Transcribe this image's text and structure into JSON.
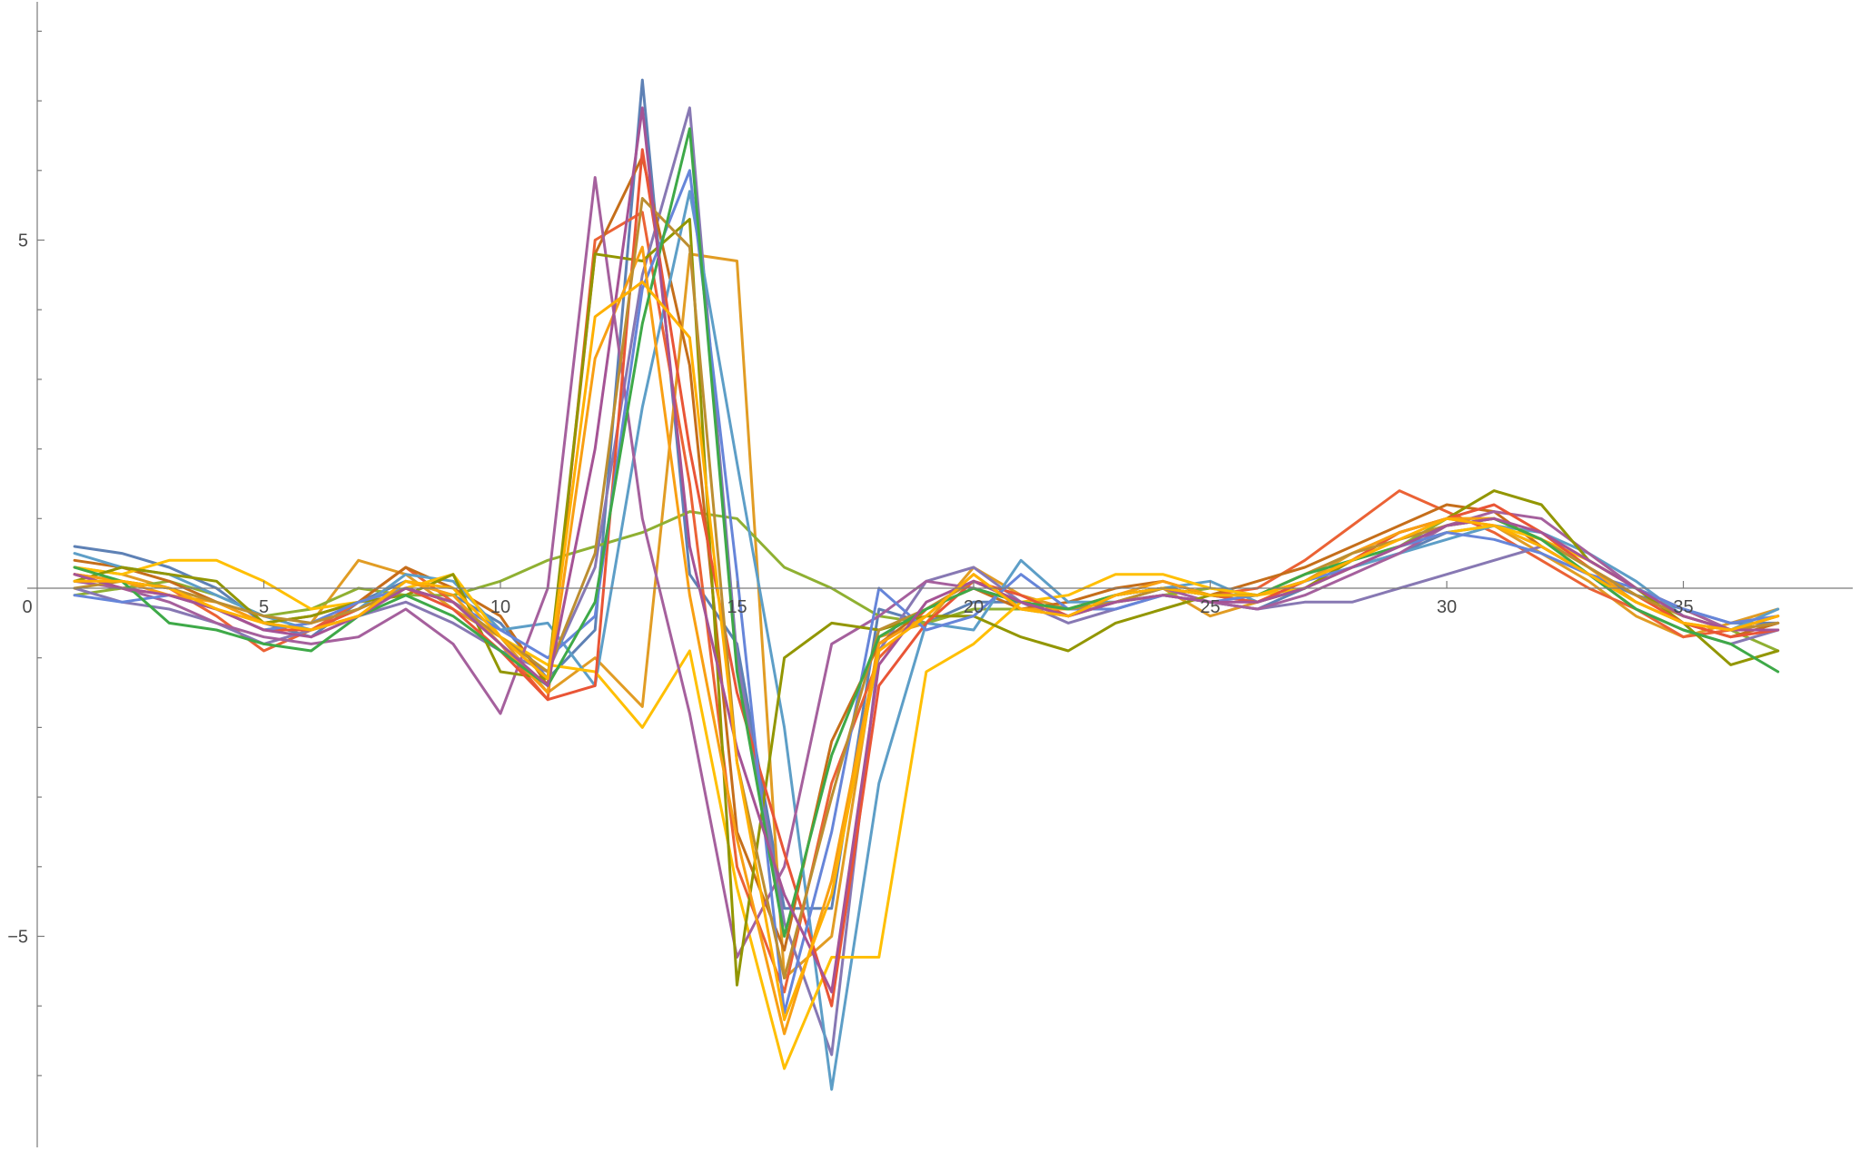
{
  "chart_data": {
    "type": "line",
    "title": "",
    "xlabel": "",
    "ylabel": "",
    "xlim": [
      0,
      38.5
    ],
    "ylim": [
      -8,
      8.5
    ],
    "grid": false,
    "legend": "none",
    "x_ticks": [
      {
        "value": 0,
        "label": "0"
      },
      {
        "value": 5,
        "label": "5"
      },
      {
        "value": 10,
        "label": "10"
      },
      {
        "value": 15,
        "label": "15"
      },
      {
        "value": 20,
        "label": "20"
      },
      {
        "value": 25,
        "label": "25"
      },
      {
        "value": 30,
        "label": "30"
      },
      {
        "value": 35,
        "label": "35"
      }
    ],
    "y_ticks": [
      {
        "value": 5,
        "label": "5"
      },
      {
        "value": -5,
        "label": "−5"
      }
    ],
    "y_minor_ticks": [
      -7,
      -6,
      -4,
      -3,
      -2,
      -1,
      1,
      2,
      3,
      4,
      6,
      7,
      8
    ],
    "x": [
      1,
      2,
      3,
      4,
      5,
      6,
      7,
      8,
      9,
      10,
      11,
      12,
      13,
      14,
      15,
      16,
      17,
      18,
      19,
      20,
      21,
      22,
      23,
      24,
      25,
      26,
      27,
      28,
      29,
      30,
      31,
      32,
      33,
      34,
      35,
      36,
      37
    ],
    "series": [
      {
        "color": "#5E81B5",
        "values": [
          0.6,
          0.5,
          0.3,
          0.0,
          -0.5,
          -0.7,
          -0.2,
          0.1,
          -0.1,
          -0.5,
          -1.3,
          -0.6,
          7.3,
          0.2,
          -0.8,
          -4.6,
          -4.6,
          -0.3,
          -0.5,
          -0.2,
          -0.2,
          -0.4,
          -0.2,
          -0.1,
          -0.2,
          -0.3,
          0.0,
          0.3,
          0.5,
          0.8,
          0.9,
          0.6,
          0.2,
          -0.1,
          -0.3,
          -0.5,
          -0.5
        ]
      },
      {
        "color": "#E19C24",
        "values": [
          0.3,
          0.2,
          0.0,
          -0.3,
          -0.6,
          -0.5,
          0.4,
          0.2,
          -0.3,
          -0.7,
          -1.5,
          -1.0,
          -1.7,
          4.8,
          4.7,
          -5.6,
          -5.0,
          -0.7,
          -0.5,
          0.3,
          -0.1,
          -0.3,
          -0.1,
          0.0,
          -0.4,
          -0.2,
          0.1,
          0.5,
          0.8,
          1.0,
          0.9,
          0.5,
          0.1,
          -0.4,
          -0.7,
          -0.5,
          -0.3
        ]
      },
      {
        "color": "#8FB032",
        "values": [
          -0.1,
          0.0,
          0.1,
          -0.1,
          -0.4,
          -0.3,
          0.0,
          -0.1,
          -0.1,
          0.1,
          0.4,
          0.6,
          0.8,
          1.1,
          1.0,
          0.3,
          0.0,
          -0.4,
          -0.5,
          -0.3,
          -0.3,
          -0.4,
          -0.2,
          -0.1,
          0.0,
          -0.1,
          0.1,
          0.4,
          0.6,
          1.0,
          1.0,
          0.7,
          0.3,
          -0.1,
          -0.4,
          -0.6,
          -0.9
        ]
      },
      {
        "color": "#EB6235",
        "values": [
          0.2,
          0.1,
          0.0,
          -0.4,
          -0.9,
          -0.6,
          -0.2,
          0.3,
          -0.2,
          -0.8,
          -1.6,
          5.0,
          5.4,
          1.5,
          -4.0,
          -5.8,
          -2.8,
          -1.0,
          -0.3,
          0.1,
          -0.2,
          -0.4,
          -0.2,
          0.0,
          -0.1,
          0.0,
          0.4,
          0.9,
          1.4,
          1.1,
          0.8,
          0.4,
          0.0,
          -0.3,
          -0.7,
          -0.6,
          -0.4
        ]
      },
      {
        "color": "#8778B3",
        "values": [
          0.0,
          -0.2,
          -0.3,
          -0.5,
          -0.8,
          -0.6,
          -0.4,
          -0.2,
          -0.5,
          -0.9,
          -1.2,
          0.3,
          4.5,
          6.9,
          -1.0,
          -4.8,
          -6.7,
          -0.9,
          0.1,
          0.3,
          -0.2,
          -0.5,
          -0.3,
          -0.1,
          -0.2,
          -0.3,
          -0.2,
          -0.2,
          0.0,
          0.2,
          0.4,
          0.6,
          0.2,
          -0.3,
          -0.6,
          -0.8,
          -0.6
        ]
      },
      {
        "color": "#C56E1A",
        "values": [
          0.4,
          0.3,
          0.1,
          -0.2,
          -0.5,
          -0.4,
          -0.2,
          0.3,
          0.0,
          -0.4,
          -1.4,
          4.8,
          6.2,
          3.2,
          -3.5,
          -5.2,
          -2.2,
          -0.8,
          -0.3,
          0.0,
          -0.3,
          -0.2,
          0.0,
          0.1,
          -0.1,
          0.1,
          0.3,
          0.6,
          0.9,
          1.2,
          1.1,
          0.6,
          0.2,
          -0.2,
          -0.5,
          -0.7,
          -0.5
        ]
      },
      {
        "color": "#5D9EC7",
        "values": [
          0.5,
          0.3,
          0.2,
          -0.1,
          -0.4,
          -0.6,
          -0.3,
          0.2,
          0.1,
          -0.6,
          -0.5,
          -1.4,
          2.6,
          5.7,
          1.8,
          -2.0,
          -7.2,
          -2.8,
          -0.5,
          -0.6,
          0.4,
          -0.2,
          -0.2,
          0.0,
          0.1,
          -0.2,
          0.0,
          0.3,
          0.5,
          0.7,
          0.9,
          0.8,
          0.5,
          0.1,
          -0.4,
          -0.6,
          -0.3
        ]
      },
      {
        "color": "#FFBF00",
        "values": [
          0.3,
          0.2,
          0.4,
          0.4,
          0.1,
          -0.3,
          -0.2,
          0.0,
          0.2,
          -0.7,
          -1.1,
          -1.2,
          -2.0,
          -0.9,
          -4.3,
          -6.9,
          -5.3,
          -5.3,
          -1.2,
          -0.8,
          -0.2,
          -0.1,
          0.2,
          0.2,
          0.0,
          -0.1,
          0.0,
          0.3,
          0.6,
          0.8,
          0.9,
          0.7,
          0.4,
          0.0,
          -0.3,
          -0.6,
          -0.5
        ]
      },
      {
        "color": "#A5609D",
        "values": [
          0.1,
          0.0,
          -0.2,
          -0.5,
          -0.7,
          -0.8,
          -0.7,
          -0.3,
          -0.8,
          -1.8,
          0.0,
          5.9,
          1.0,
          -1.8,
          -5.3,
          -4.0,
          -0.8,
          -0.4,
          0.1,
          0.0,
          -0.2,
          -0.3,
          -0.1,
          0.0,
          -0.2,
          -0.3,
          -0.1,
          0.2,
          0.5,
          0.9,
          1.1,
          1.0,
          0.5,
          0.0,
          -0.3,
          -0.6,
          -0.5
        ]
      },
      {
        "color": "#929600",
        "values": [
          0.1,
          0.3,
          0.2,
          0.1,
          -0.5,
          -0.4,
          -0.2,
          -0.1,
          0.2,
          -1.2,
          -1.3,
          4.8,
          4.7,
          5.3,
          -5.7,
          -1.0,
          -0.5,
          -0.6,
          -0.4,
          -0.4,
          -0.7,
          -0.9,
          -0.5,
          -0.3,
          -0.1,
          -0.2,
          0.0,
          0.4,
          0.8,
          1.0,
          1.4,
          1.2,
          0.4,
          0.0,
          -0.5,
          -1.1,
          -0.9
        ]
      },
      {
        "color": "#E95536",
        "values": [
          0.2,
          0.0,
          -0.1,
          -0.3,
          -0.6,
          -0.6,
          -0.3,
          0.0,
          -0.3,
          -0.9,
          -1.6,
          -1.4,
          6.3,
          2.0,
          -1.5,
          -3.8,
          -6.0,
          -1.4,
          -0.5,
          0.1,
          -0.1,
          -0.4,
          -0.1,
          0.0,
          -0.1,
          -0.2,
          0.1,
          0.4,
          0.8,
          1.0,
          1.2,
          0.8,
          0.3,
          -0.1,
          -0.5,
          -0.7,
          -0.6
        ]
      },
      {
        "color": "#6685D9",
        "values": [
          -0.1,
          -0.2,
          -0.1,
          -0.3,
          -0.6,
          -0.5,
          -0.2,
          0.0,
          -0.2,
          -0.6,
          -1.0,
          -0.4,
          4.3,
          6.0,
          0.2,
          -6.1,
          -3.5,
          0.0,
          -0.6,
          -0.4,
          0.2,
          -0.3,
          -0.3,
          -0.1,
          -0.2,
          -0.1,
          0.1,
          0.3,
          0.6,
          0.8,
          0.7,
          0.5,
          0.2,
          0.0,
          -0.3,
          -0.5,
          -0.4
        ]
      },
      {
        "color": "#F89F13",
        "values": [
          0.2,
          0.1,
          -0.1,
          -0.2,
          -0.5,
          -0.6,
          -0.4,
          0.1,
          -0.1,
          -0.8,
          -1.5,
          3.3,
          4.9,
          -0.1,
          -3.6,
          -6.4,
          -4.2,
          -0.8,
          -0.4,
          0.2,
          -0.3,
          -0.3,
          -0.1,
          0.1,
          -0.1,
          -0.1,
          0.2,
          0.5,
          0.8,
          1.0,
          1.0,
          0.7,
          0.3,
          -0.2,
          -0.5,
          -0.6,
          -0.4
        ]
      },
      {
        "color": "#BC8E31",
        "values": [
          0.0,
          0.1,
          0.0,
          -0.2,
          -0.4,
          -0.5,
          -0.3,
          0.0,
          -0.2,
          -0.7,
          -1.2,
          0.5,
          5.6,
          4.9,
          -2.5,
          -5.6,
          -3.0,
          -0.6,
          -0.3,
          0.1,
          -0.2,
          -0.3,
          -0.2,
          0.0,
          -0.1,
          -0.1,
          0.2,
          0.5,
          0.7,
          0.9,
          1.0,
          0.7,
          0.3,
          -0.1,
          -0.4,
          -0.6,
          -0.5
        ]
      },
      {
        "color": "#3EA948",
        "values": [
          0.3,
          0.1,
          -0.5,
          -0.6,
          -0.8,
          -0.9,
          -0.4,
          -0.1,
          -0.4,
          -0.9,
          -1.4,
          -0.2,
          3.8,
          6.6,
          -1.2,
          -5.0,
          -2.4,
          -0.7,
          -0.3,
          0.0,
          -0.2,
          -0.3,
          -0.1,
          0.0,
          -0.1,
          -0.1,
          0.2,
          0.4,
          0.6,
          0.9,
          1.0,
          0.7,
          0.2,
          -0.3,
          -0.6,
          -0.8,
          -1.2
        ]
      },
      {
        "color": "#A55395",
        "values": [
          0.2,
          0.0,
          -0.1,
          -0.3,
          -0.6,
          -0.7,
          -0.4,
          0.0,
          -0.2,
          -0.8,
          -1.4,
          2.0,
          6.9,
          0.6,
          -2.3,
          -4.4,
          -5.8,
          -1.1,
          -0.2,
          0.1,
          -0.2,
          -0.4,
          -0.2,
          -0.1,
          -0.2,
          -0.2,
          0.0,
          0.3,
          0.6,
          0.9,
          1.0,
          0.8,
          0.4,
          0.0,
          -0.4,
          -0.6,
          -0.6
        ]
      },
      {
        "color": "#FFB000",
        "values": [
          0.1,
          0.1,
          0.0,
          -0.3,
          -0.5,
          -0.6,
          -0.4,
          0.1,
          0.0,
          -0.7,
          -1.3,
          3.9,
          4.4,
          3.6,
          -2.5,
          -6.2,
          -4.4,
          -0.9,
          -0.4,
          0.2,
          -0.3,
          -0.4,
          -0.1,
          0.0,
          -0.1,
          -0.1,
          0.1,
          0.4,
          0.7,
          1.0,
          0.9,
          0.6,
          0.2,
          -0.2,
          -0.5,
          -0.6,
          -0.4
        ]
      }
    ]
  }
}
